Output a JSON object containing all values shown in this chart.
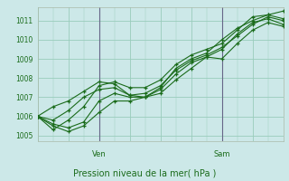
{
  "title": "Pression niveau de la mer( hPa )",
  "ylabel_ticks": [
    1005,
    1006,
    1007,
    1008,
    1009,
    1010,
    1011
  ],
  "ylim": [
    1004.7,
    1011.7
  ],
  "xlim": [
    0,
    48
  ],
  "ven_x": 12,
  "sam_x": 36,
  "bg_color": "#cce8e8",
  "grid_color": "#99ccbb",
  "line_color": "#1a6b1a",
  "series": [
    [
      0,
      1006.0,
      3,
      1005.3,
      6,
      1005.8,
      9,
      1006.5,
      12,
      1007.6,
      15,
      1007.8,
      18,
      1007.5,
      21,
      1007.5,
      24,
      1007.9,
      27,
      1008.7,
      30,
      1009.2,
      33,
      1009.5,
      36,
      1009.8,
      39,
      1010.5,
      42,
      1011.2,
      45,
      1011.3,
      48,
      1011.1
    ],
    [
      0,
      1006.0,
      3,
      1006.5,
      6,
      1006.8,
      9,
      1007.3,
      12,
      1007.8,
      15,
      1007.7,
      18,
      1007.1,
      21,
      1007.0,
      24,
      1007.5,
      27,
      1008.5,
      30,
      1009.0,
      33,
      1009.3,
      36,
      1010.0,
      39,
      1010.6,
      42,
      1011.0,
      45,
      1011.3,
      48,
      1011.5
    ],
    [
      0,
      1006.0,
      3,
      1005.6,
      6,
      1005.4,
      9,
      1005.7,
      12,
      1006.8,
      15,
      1007.2,
      18,
      1007.0,
      21,
      1007.0,
      24,
      1007.4,
      27,
      1008.2,
      30,
      1008.8,
      33,
      1009.1,
      36,
      1009.0,
      39,
      1009.8,
      42,
      1010.5,
      45,
      1010.9,
      48,
      1010.7
    ],
    [
      0,
      1006.0,
      3,
      1005.5,
      6,
      1005.2,
      9,
      1005.5,
      12,
      1006.2,
      15,
      1006.8,
      18,
      1006.8,
      21,
      1007.0,
      24,
      1007.2,
      27,
      1007.9,
      30,
      1008.5,
      33,
      1009.1,
      36,
      1009.5,
      39,
      1010.3,
      42,
      1010.9,
      45,
      1011.1,
      48,
      1010.8
    ],
    [
      0,
      1006.0,
      3,
      1005.8,
      6,
      1006.3,
      9,
      1007.0,
      12,
      1007.4,
      15,
      1007.5,
      18,
      1007.1,
      21,
      1007.2,
      24,
      1007.6,
      27,
      1008.4,
      30,
      1008.9,
      33,
      1009.2,
      36,
      1009.6,
      39,
      1010.2,
      42,
      1010.8,
      45,
      1011.2,
      48,
      1011.0
    ]
  ]
}
